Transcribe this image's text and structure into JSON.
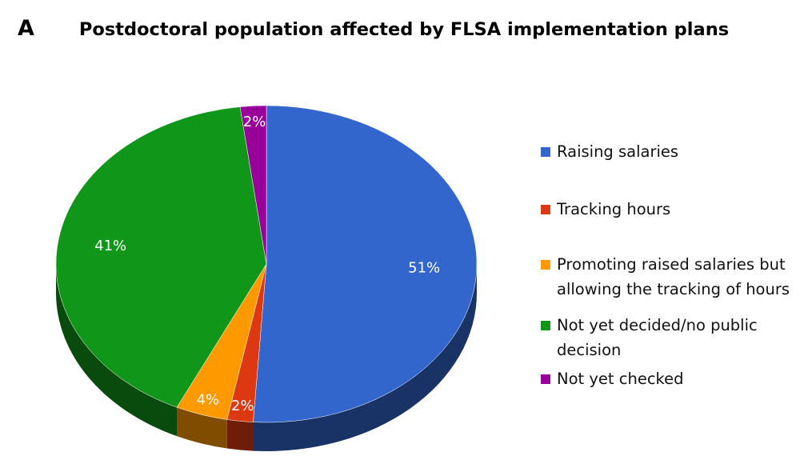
{
  "chart_data": {
    "type": "pie",
    "panel_label": "A",
    "title": "Postdoctoral population affected by FLSA implementation plans",
    "categories": [
      "Raising salaries",
      "Tracking hours",
      "Promoting raised salaries but allowing the tracking of hours",
      "Not yet decided/no public decision",
      "Not yet checked"
    ],
    "values": [
      51,
      2,
      4,
      41,
      2
    ],
    "value_labels": [
      "51%",
      "2%",
      "4%",
      "41%",
      "2%"
    ],
    "colors": [
      "#3366cc",
      "#dc3912",
      "#ff9900",
      "#109618",
      "#990099"
    ],
    "legend": "right"
  }
}
